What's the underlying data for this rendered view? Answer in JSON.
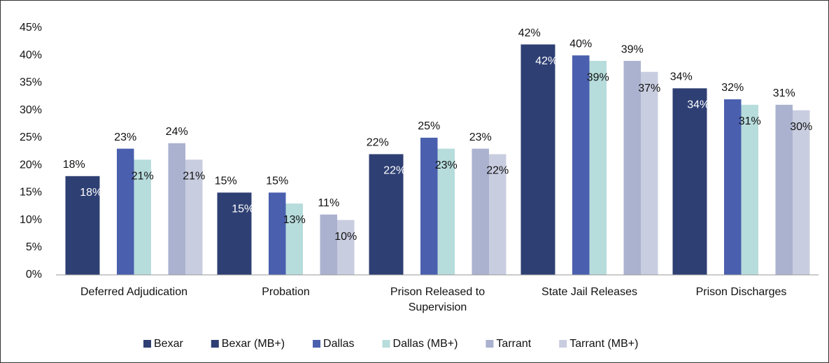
{
  "chart_data": {
    "type": "bar",
    "categories": [
      "Deferred Adjudication",
      "Probation",
      "Prison Released to Supervision",
      "State Jail Releases",
      "Prison Discharges"
    ],
    "series": [
      {
        "name": "Bexar",
        "color": "#2e3f73",
        "values": [
          18,
          15,
          22,
          42,
          34
        ],
        "value_labels": [
          "18%",
          "15%",
          "22%",
          "42%",
          "34%"
        ]
      },
      {
        "name": "Bexar (MB+)",
        "color": "#2e3f73",
        "values": [
          18,
          15,
          22,
          42,
          34
        ],
        "value_labels": [
          "18%",
          "15%",
          "22%",
          "42%",
          "34%"
        ]
      },
      {
        "name": "Dallas",
        "color": "#4a5fae",
        "values": [
          23,
          15,
          25,
          40,
          32
        ],
        "value_labels": [
          "23%",
          "15%",
          "25%",
          "40%",
          "32%"
        ]
      },
      {
        "name": "Dallas (MB+)",
        "color": "#b7dcdc",
        "values": [
          21,
          13,
          23,
          39,
          31
        ],
        "value_labels": [
          "21%",
          "13%",
          "23%",
          "39%",
          "31%"
        ]
      },
      {
        "name": "Tarrant",
        "color": "#aab2cf",
        "values": [
          24,
          11,
          23,
          39,
          31
        ],
        "value_labels": [
          "24%",
          "11%",
          "23%",
          "39%",
          "31%"
        ]
      },
      {
        "name": "Tarrant (MB+)",
        "color": "#c9cde0",
        "values": [
          21,
          10,
          22,
          37,
          30
        ],
        "value_labels": [
          "21%",
          "10%",
          "22%",
          "37%",
          "30%"
        ]
      }
    ],
    "ylim": [
      0,
      45
    ],
    "yticks": [
      {
        "value": 0,
        "label": "0%"
      },
      {
        "value": 5,
        "label": "5%"
      },
      {
        "value": 10,
        "label": "10%"
      },
      {
        "value": 15,
        "label": "15%"
      },
      {
        "value": 20,
        "label": "20%"
      },
      {
        "value": 25,
        "label": "25%"
      },
      {
        "value": 30,
        "label": "30%"
      },
      {
        "value": 35,
        "label": "35%"
      },
      {
        "value": 40,
        "label": "40%"
      },
      {
        "value": 45,
        "label": "45%"
      }
    ],
    "legend": "bottom"
  }
}
